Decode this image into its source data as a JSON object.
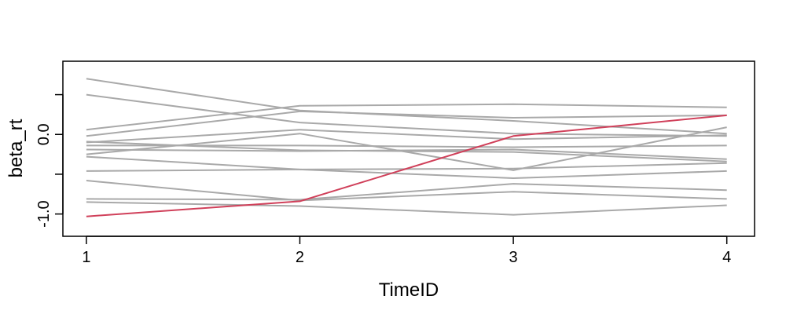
{
  "chart_data": {
    "type": "line",
    "title": "",
    "xlabel": "TimeID",
    "ylabel": "beta_rt",
    "x": [
      1,
      2,
      3,
      4
    ],
    "x_ticks": [
      1,
      2,
      3,
      4
    ],
    "x_tick_labels": [
      "1",
      "2",
      "3",
      "4"
    ],
    "y_ticks": [
      -1.0,
      -0.5,
      0.0,
      0.5
    ],
    "y_tick_labels": [
      "-1.0",
      "",
      "0.0",
      ""
    ],
    "xlim": [
      0.89,
      4.13
    ],
    "ylim": [
      -1.28,
      0.92
    ],
    "grid": false,
    "legend": "none",
    "highlight_color": "#d0405a",
    "background_color": "#a9a9a9",
    "series": [
      {
        "values": [
          0.7,
          0.3,
          0.17,
          0.01
        ]
      },
      {
        "values": [
          0.5,
          0.15,
          0.01,
          -0.02
        ]
      },
      {
        "values": [
          0.06,
          0.36,
          0.38,
          0.34
        ]
      },
      {
        "values": [
          -0.02,
          0.29,
          0.21,
          0.24
        ]
      },
      {
        "values": [
          -0.09,
          -0.2,
          -0.22,
          -0.34
        ]
      },
      {
        "values": [
          -0.1,
          0.06,
          -0.06,
          -0.01
        ]
      },
      {
        "values": [
          -0.14,
          -0.14,
          -0.16,
          -0.14
        ]
      },
      {
        "values": [
          -0.19,
          -0.21,
          -0.19,
          -0.31
        ]
      },
      {
        "values": [
          -0.25,
          0.01,
          -0.45,
          0.09
        ]
      },
      {
        "values": [
          -0.28,
          -0.44,
          -0.43,
          -0.36
        ]
      },
      {
        "values": [
          -0.46,
          -0.44,
          -0.55,
          -0.46
        ]
      },
      {
        "values": [
          -0.58,
          -0.83,
          -0.72,
          -0.81
        ]
      },
      {
        "values": [
          -0.81,
          -0.82,
          -0.62,
          -0.7
        ]
      },
      {
        "values": [
          -0.85,
          -0.9,
          -1.01,
          -0.89
        ]
      },
      {
        "values": [
          -1.03,
          -0.84,
          -0.02,
          0.24
        ],
        "highlight": true
      }
    ]
  }
}
